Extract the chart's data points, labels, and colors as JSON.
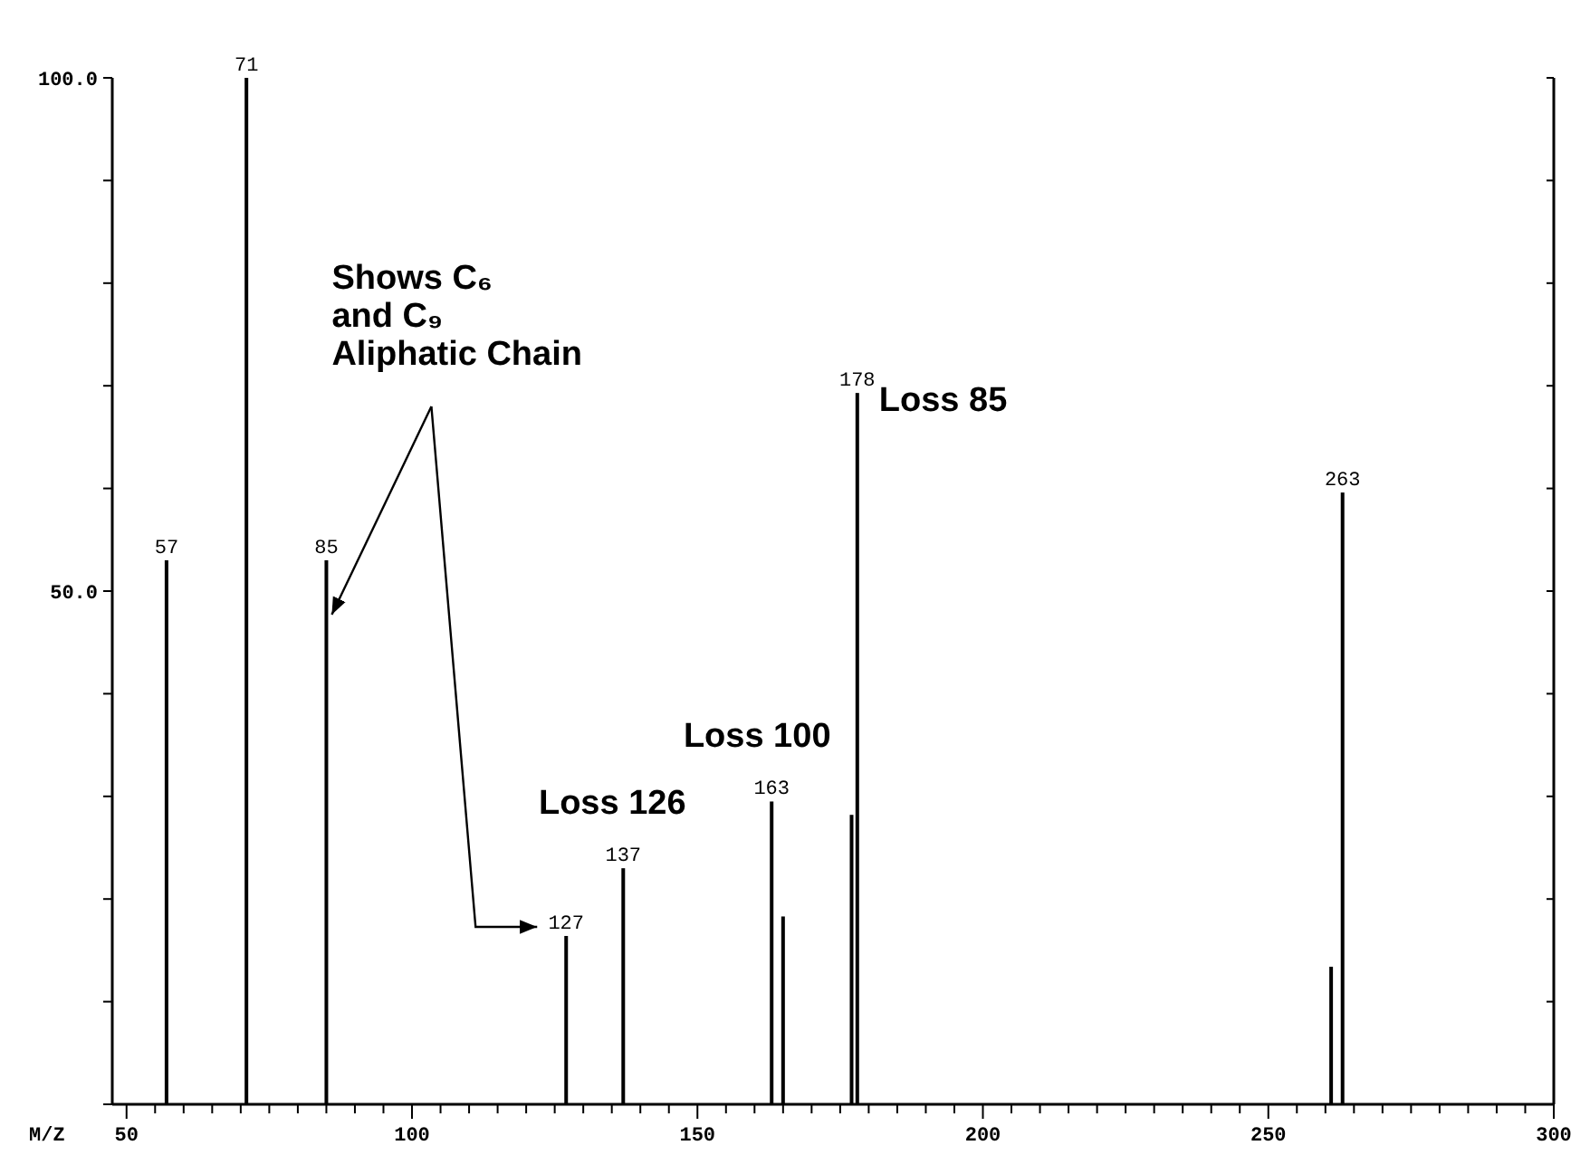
{
  "chart_data": {
    "type": "bar",
    "xlabel": "M/Z",
    "x": [
      57,
      71,
      85,
      127,
      137,
      163,
      165,
      177,
      178,
      261,
      263
    ],
    "values": [
      53,
      100,
      53,
      16.4,
      23,
      29.5,
      18.3,
      28.2,
      69.3,
      13.4,
      59.6
    ],
    "color": "#000000",
    "xlim": [
      47.5,
      300
    ],
    "xticks": [
      50,
      {
        "value": 55,
        "label": null
      },
      {
        "value": 60,
        "label": null
      },
      {
        "value": 65,
        "label": null
      },
      {
        "value": 70,
        "label": null
      },
      {
        "value": 75,
        "label": null
      },
      {
        "value": 80,
        "label": null
      },
      {
        "value": 85,
        "label": null
      },
      {
        "value": 90,
        "label": null
      },
      {
        "value": 95,
        "label": null
      },
      100,
      {
        "value": 105,
        "label": null
      },
      {
        "value": 110,
        "label": null
      },
      {
        "value": 115,
        "label": null
      },
      {
        "value": 120,
        "label": null
      },
      {
        "value": 125,
        "label": null
      },
      {
        "value": 130,
        "label": null
      },
      {
        "value": 135,
        "label": null
      },
      {
        "value": 140,
        "label": null
      },
      {
        "value": 145,
        "label": null
      },
      150,
      {
        "value": 155,
        "label": null
      },
      {
        "value": 160,
        "label": null
      },
      {
        "value": 165,
        "label": null
      },
      {
        "value": 170,
        "label": null
      },
      {
        "value": 175,
        "label": null
      },
      {
        "value": 180,
        "label": null
      },
      {
        "value": 185,
        "label": null
      },
      {
        "value": 190,
        "label": null
      },
      {
        "value": 195,
        "label": null
      },
      200,
      {
        "value": 205,
        "label": null
      },
      {
        "value": 210,
        "label": null
      },
      {
        "value": 215,
        "label": null
      },
      {
        "value": 220,
        "label": null
      },
      {
        "value": 225,
        "label": null
      },
      {
        "value": 230,
        "label": null
      },
      {
        "value": 235,
        "label": null
      },
      {
        "value": 240,
        "label": null
      },
      {
        "value": 245,
        "label": null
      },
      250,
      {
        "value": 255,
        "label": null
      },
      {
        "value": 260,
        "label": null
      },
      {
        "value": 265,
        "label": null
      },
      {
        "value": 270,
        "label": null
      },
      {
        "value": 275,
        "label": null
      },
      {
        "value": 280,
        "label": null
      },
      {
        "value": 285,
        "label": null
      },
      {
        "value": 290,
        "label": null
      },
      {
        "value": 295,
        "label": null
      },
      300
    ],
    "ylim": [
      0,
      100
    ],
    "yticks": [
      {
        "value": 0,
        "label": null
      },
      {
        "value": 10,
        "label": null
      },
      {
        "value": 20,
        "label": null
      },
      {
        "value": 30,
        "label": null
      },
      {
        "value": 40,
        "label": null
      },
      {
        "value": 50,
        "label": "50.0"
      },
      {
        "value": 60,
        "label": null
      },
      {
        "value": 70,
        "label": null
      },
      {
        "value": 80,
        "label": null
      },
      {
        "value": 90,
        "label": null
      },
      {
        "value": 100,
        "label": "100.0"
      }
    ],
    "annotations": [
      {
        "text": "Shows C₆\nand C₉\nAliphatic Chain",
        "x": 85,
        "y": 47.7
      },
      {
        "text": "Loss 126",
        "x": 137,
        "y": 23
      },
      {
        "text": "Loss 100",
        "x": 163,
        "y": 29.5
      },
      {
        "text": "Loss 85",
        "x": 178,
        "y": 69.3
      },
      {
        "text": "57",
        "x": 57,
        "y": 53
      },
      {
        "text": "71",
        "x": 71,
        "y": 100
      },
      {
        "text": "85",
        "x": 85,
        "y": 53
      },
      {
        "text": "127",
        "x": 127,
        "y": 16.4
      },
      {
        "text": "137",
        "x": 137,
        "y": 23
      },
      {
        "text": "163",
        "x": 163,
        "y": 29.5
      },
      {
        "text": "178",
        "x": 178,
        "y": 69.3
      },
      {
        "text": "263",
        "x": 263,
        "y": 59.6
      }
    ]
  }
}
